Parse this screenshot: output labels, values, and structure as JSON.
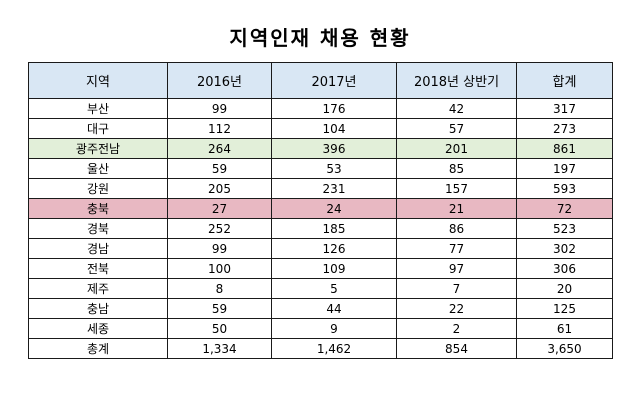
{
  "title": "지역인재 채용 현황",
  "table": {
    "headers": [
      "지역",
      "2016년",
      "2017년",
      "2018년 상반기",
      "합계"
    ],
    "rows": [
      [
        "부산",
        "99",
        "176",
        "42",
        "317"
      ],
      [
        "대구",
        "112",
        "104",
        "57",
        "273"
      ],
      [
        "광주전남",
        "264",
        "396",
        "201",
        "861"
      ],
      [
        "울산",
        "59",
        "53",
        "85",
        "197"
      ],
      [
        "강원",
        "205",
        "231",
        "157",
        "593"
      ],
      [
        "충북",
        "27",
        "24",
        "21",
        "72"
      ],
      [
        "경북",
        "252",
        "185",
        "86",
        "523"
      ],
      [
        "경남",
        "99",
        "126",
        "77",
        "302"
      ],
      [
        "전북",
        "100",
        "109",
        "97",
        "306"
      ],
      [
        "제주",
        "8",
        "5",
        "7",
        "20"
      ],
      [
        "충남",
        "59",
        "44",
        "22",
        "125"
      ],
      [
        "세종",
        "50",
        "9",
        "2",
        "61"
      ],
      [
        "총계",
        "1,334",
        "1,462",
        "854",
        "3,650"
      ]
    ]
  },
  "colors": {
    "header_bg": "#d9e7f4",
    "highlight_green": "#e2efd9",
    "highlight_red": "#e8b8c2"
  }
}
